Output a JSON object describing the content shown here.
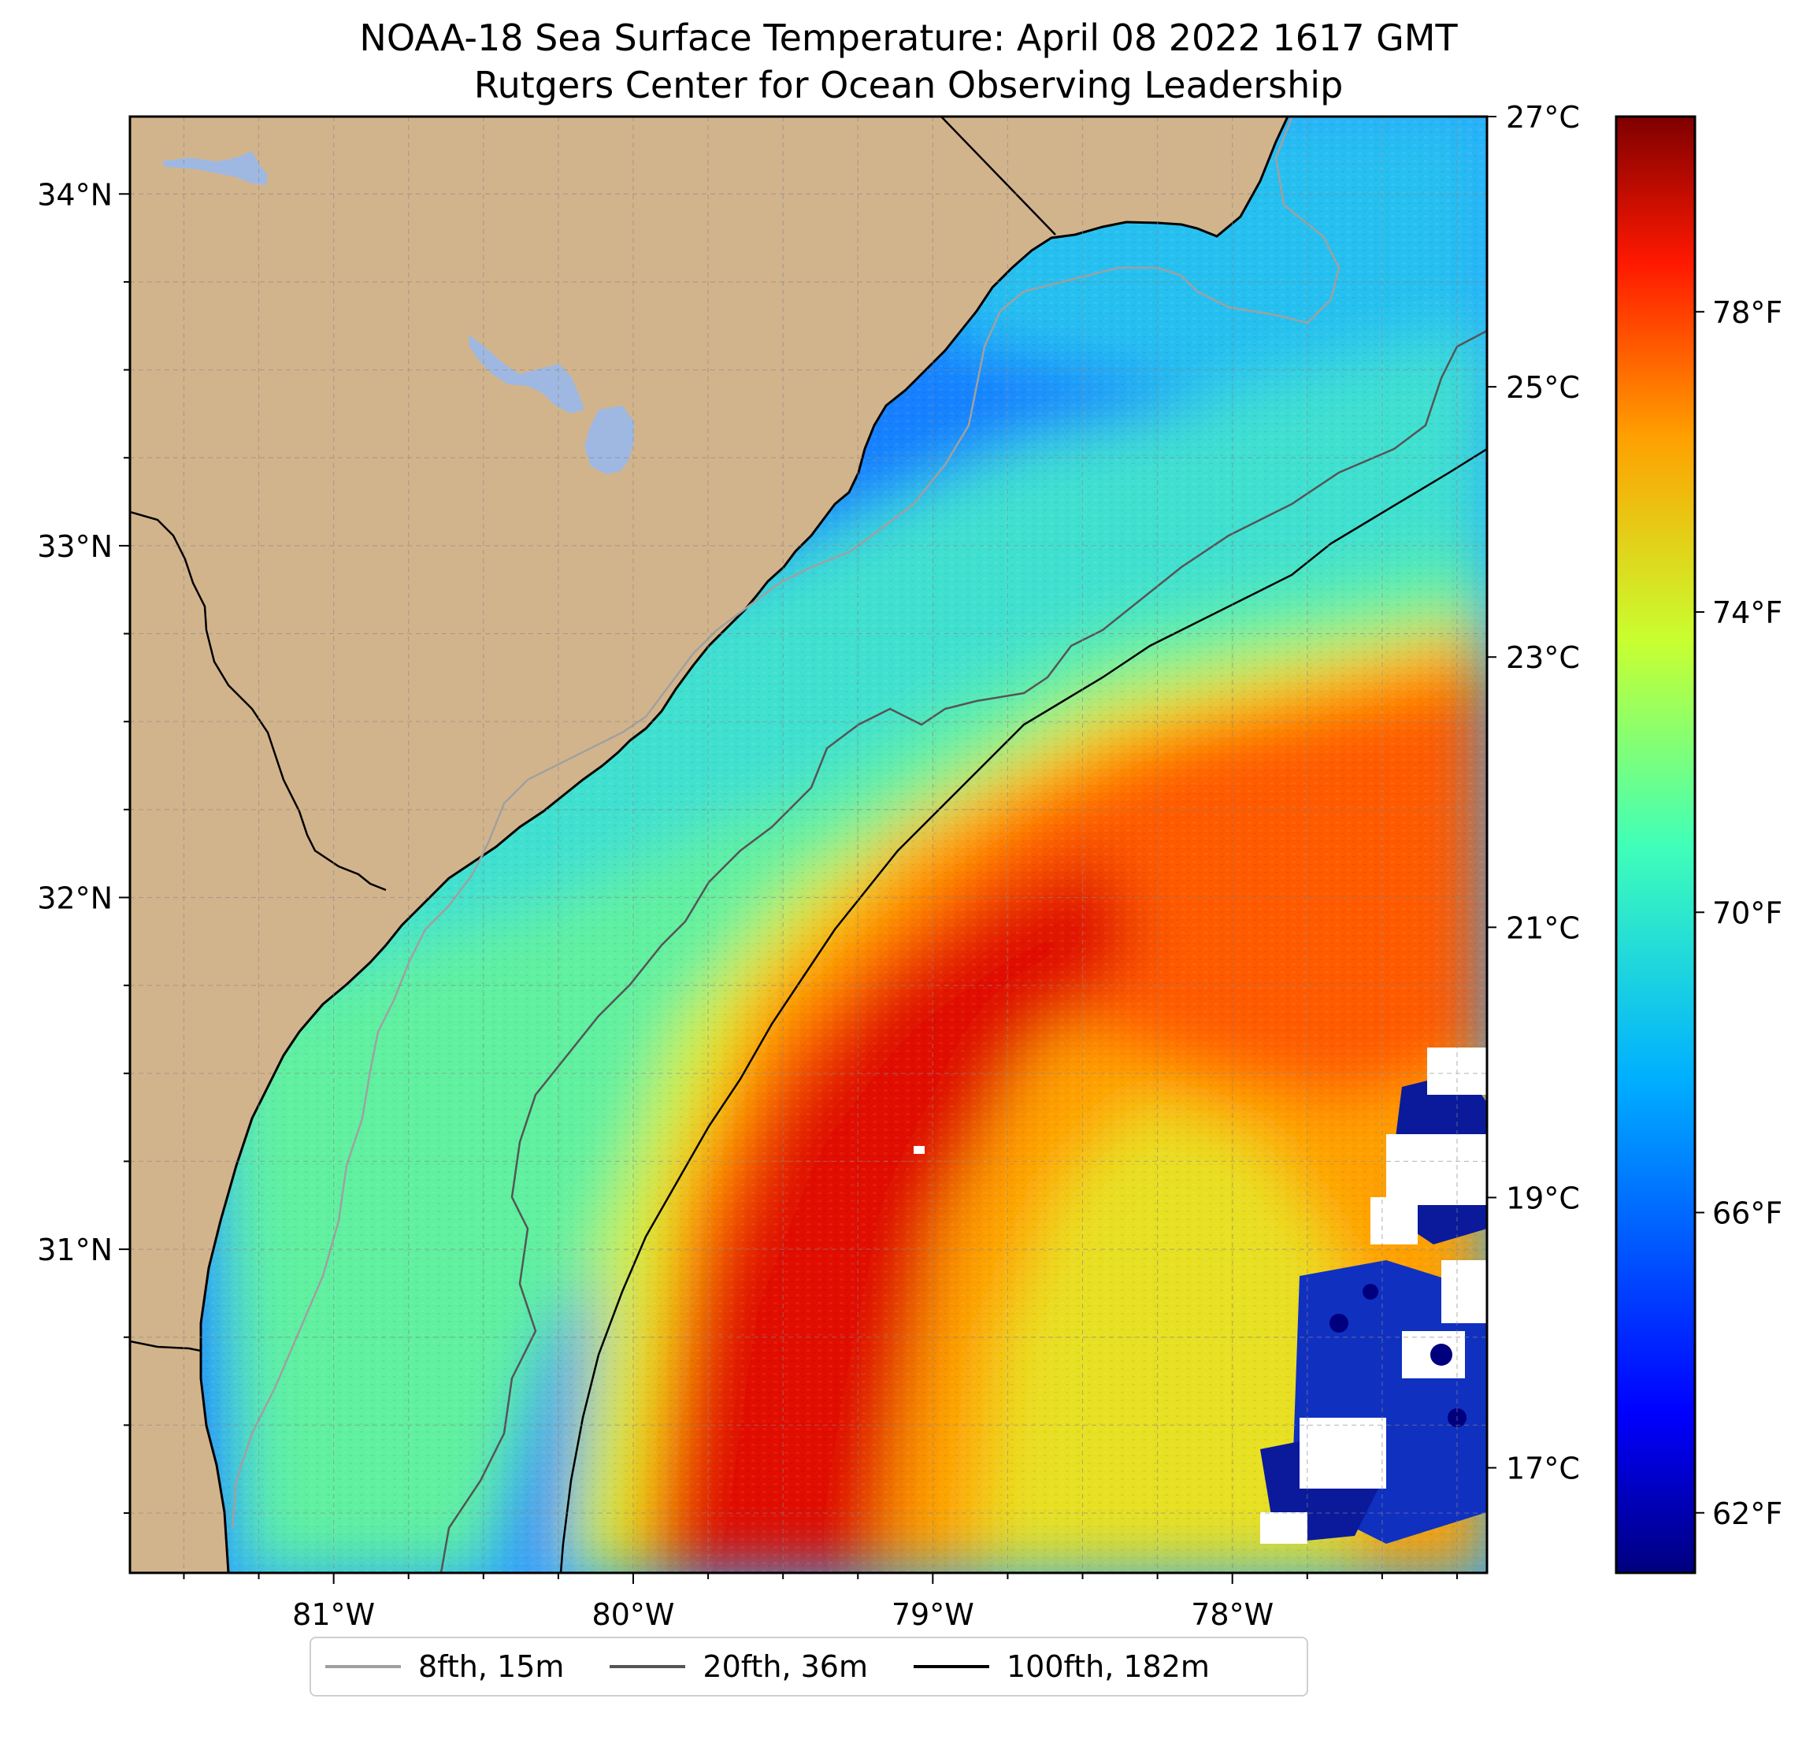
{
  "title": {
    "line1": "NOAA-18 Sea Surface Temperature: April 08 2022 1617 GMT",
    "line2": "Rutgers Center for Ocean Observing Leadership"
  },
  "map": {
    "lon_range": [
      -81.68,
      -77.15
    ],
    "lat_range": [
      30.08,
      34.22
    ],
    "lat_ticks": [
      {
        "value": 34,
        "label": "34°N"
      },
      {
        "value": 33,
        "label": "33°N"
      },
      {
        "value": 32,
        "label": "32°N"
      },
      {
        "value": 31,
        "label": "31°N"
      }
    ],
    "lon_ticks": [
      {
        "value": -81,
        "label": "81°W"
      },
      {
        "value": -80,
        "label": "80°W"
      },
      {
        "value": -79,
        "label": "79°W"
      },
      {
        "value": -78,
        "label": "78°W"
      }
    ],
    "grid": "dashed every 0.25°",
    "colors": {
      "land": "#d2b48c",
      "lakes": "#9fb8e2",
      "coastline": "#000000",
      "no_data": "#ffffff"
    }
  },
  "colorbar": {
    "colormap": "jet",
    "celsius_ticks": [
      {
        "value": 27,
        "label": "27°C"
      },
      {
        "value": 25,
        "label": "25°C"
      },
      {
        "value": 23,
        "label": "23°C"
      },
      {
        "value": 21,
        "label": "21°C"
      },
      {
        "value": 19,
        "label": "19°C"
      },
      {
        "value": 17,
        "label": "17°C"
      }
    ],
    "fahrenheit_ticks": [
      {
        "value": 78,
        "label": "78°F"
      },
      {
        "value": 74,
        "label": "74°F"
      },
      {
        "value": 70,
        "label": "70°F"
      },
      {
        "value": 66,
        "label": "66°F"
      },
      {
        "value": 62,
        "label": "62°F"
      }
    ],
    "range_f": [
      61.2,
      80.6
    ]
  },
  "legend": [
    {
      "label": "8fth, 15m",
      "color": "#a0a0a0"
    },
    {
      "label": "20fth, 36m",
      "color": "#555555"
    },
    {
      "label": "100fth, 182m",
      "color": "#000000"
    }
  ]
}
